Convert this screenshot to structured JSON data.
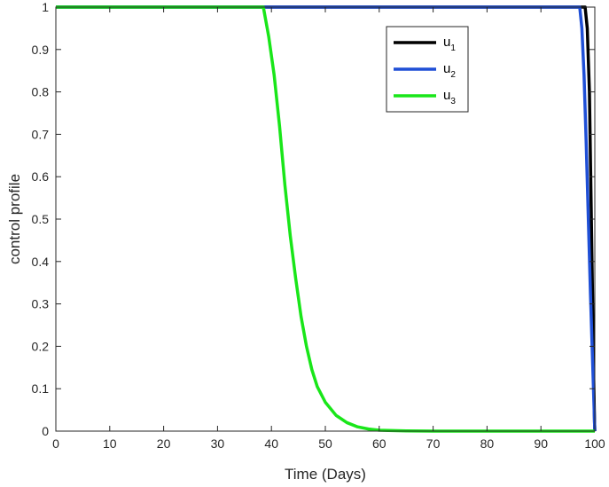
{
  "chart_data": {
    "type": "line",
    "title": "",
    "xlabel": "Time (Days)",
    "ylabel": "control profile",
    "xlim": [
      0,
      100
    ],
    "ylim": [
      0,
      1
    ],
    "xticks": [
      0,
      10,
      20,
      30,
      40,
      50,
      60,
      70,
      80,
      90,
      100
    ],
    "yticks": [
      0,
      0.1,
      0.2,
      0.3,
      0.4,
      0.5,
      0.6,
      0.7,
      0.8,
      0.9,
      1
    ],
    "grid": false,
    "legend_position": "top-right",
    "series": [
      {
        "name": "u",
        "subscript": "1",
        "color": "#000000",
        "points": [
          [
            0,
            1
          ],
          [
            98.2,
            1
          ],
          [
            98.6,
            0.95
          ],
          [
            99.0,
            0.8
          ],
          [
            99.3,
            0.55
          ],
          [
            99.6,
            0.3
          ],
          [
            99.8,
            0.12
          ],
          [
            99.95,
            0.02
          ],
          [
            100,
            0
          ]
        ]
      },
      {
        "name": "u",
        "subscript": "2",
        "color": "#1f4fd6",
        "points": [
          [
            0,
            1
          ],
          [
            97.2,
            1
          ],
          [
            97.6,
            0.95
          ],
          [
            98.0,
            0.84
          ],
          [
            98.4,
            0.68
          ],
          [
            98.8,
            0.5
          ],
          [
            99.2,
            0.32
          ],
          [
            99.6,
            0.16
          ],
          [
            99.85,
            0.06
          ],
          [
            100,
            0
          ]
        ]
      },
      {
        "name": "u",
        "subscript": "3",
        "color": "#19e619",
        "points": [
          [
            0,
            1
          ],
          [
            38.5,
            1
          ],
          [
            39.5,
            0.93
          ],
          [
            40.5,
            0.84
          ],
          [
            41.5,
            0.72
          ],
          [
            42.5,
            0.58
          ],
          [
            43.5,
            0.46
          ],
          [
            44.5,
            0.36
          ],
          [
            45.5,
            0.27
          ],
          [
            46.5,
            0.2
          ],
          [
            47.5,
            0.145
          ],
          [
            48.5,
            0.105
          ],
          [
            50,
            0.068
          ],
          [
            52,
            0.037
          ],
          [
            54,
            0.02
          ],
          [
            56,
            0.01
          ],
          [
            58,
            0.005
          ],
          [
            60,
            0.002
          ],
          [
            65,
            0.0005
          ],
          [
            70,
            0
          ],
          [
            100,
            0
          ]
        ]
      }
    ]
  }
}
